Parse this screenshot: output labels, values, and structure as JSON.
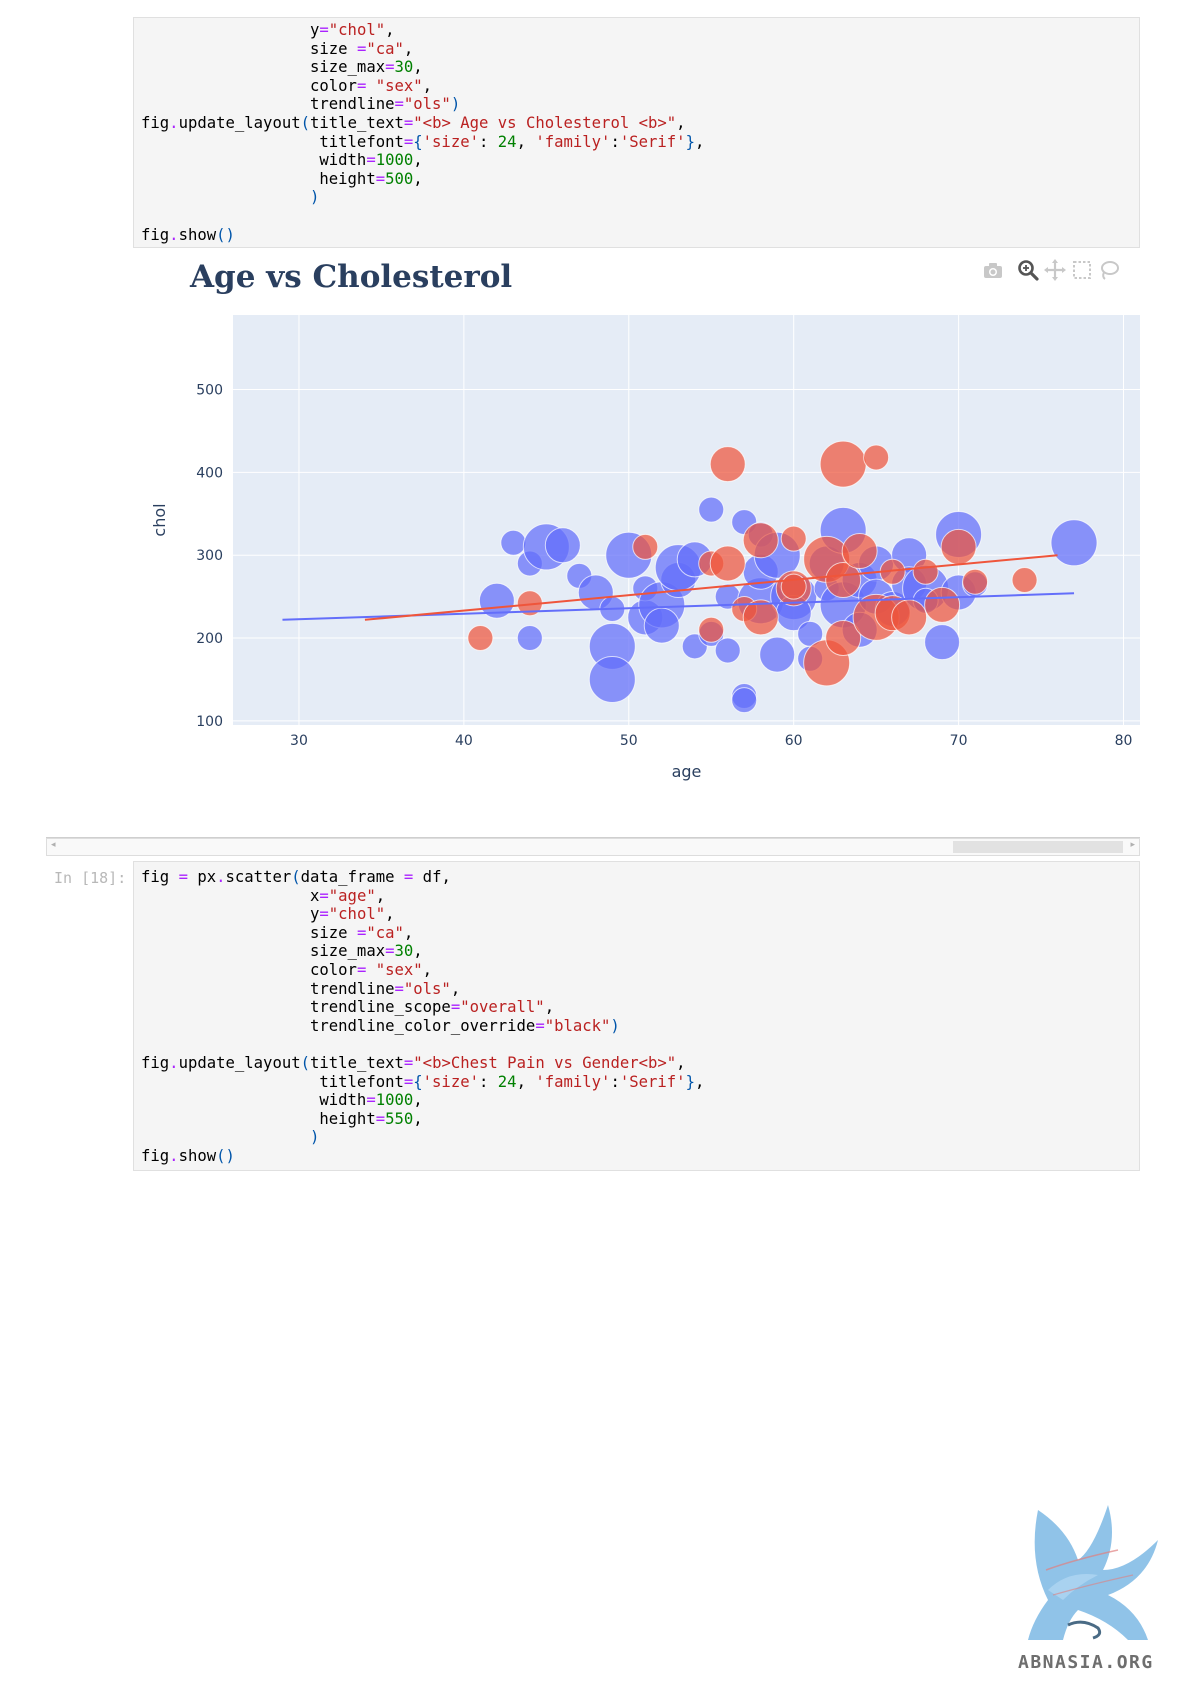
{
  "cell_top": {
    "lines": [
      [
        {
          "t": "                  y"
        },
        {
          "t": "=",
          "c": "o"
        },
        {
          "t": "\"chol\"",
          "c": "s"
        },
        {
          "t": ","
        }
      ],
      [
        {
          "t": "                  size "
        },
        {
          "t": "=",
          "c": "o"
        },
        {
          "t": "\"ca\"",
          "c": "s"
        },
        {
          "t": ","
        }
      ],
      [
        {
          "t": "                  size_max"
        },
        {
          "t": "=",
          "c": "o"
        },
        {
          "t": "30",
          "c": "n"
        },
        {
          "t": ","
        }
      ],
      [
        {
          "t": "                  color"
        },
        {
          "t": "=",
          "c": "o"
        },
        {
          "t": " "
        },
        {
          "t": "\"sex\"",
          "c": "s"
        },
        {
          "t": ","
        }
      ],
      [
        {
          "t": "                  trendline"
        },
        {
          "t": "=",
          "c": "o"
        },
        {
          "t": "\"ols\"",
          "c": "s"
        },
        {
          "t": ")",
          "c": "p"
        }
      ],
      [
        {
          "t": "fig"
        },
        {
          "t": ".",
          "c": "o"
        },
        {
          "t": "update_layout"
        },
        {
          "t": "(",
          "c": "p"
        },
        {
          "t": "title_text"
        },
        {
          "t": "=",
          "c": "o"
        },
        {
          "t": "\"<b> Age vs Cholesterol <b>\"",
          "c": "s"
        },
        {
          "t": ","
        }
      ],
      [
        {
          "t": "                   titlefont"
        },
        {
          "t": "=",
          "c": "o"
        },
        {
          "t": "{",
          "c": "p"
        },
        {
          "t": "'size'",
          "c": "s"
        },
        {
          "t": ": "
        },
        {
          "t": "24",
          "c": "n"
        },
        {
          "t": ", "
        },
        {
          "t": "'family'",
          "c": "s"
        },
        {
          "t": ":"
        },
        {
          "t": "'Serif'",
          "c": "s"
        },
        {
          "t": "}",
          "c": "p"
        },
        {
          "t": ","
        }
      ],
      [
        {
          "t": "                   width"
        },
        {
          "t": "=",
          "c": "o"
        },
        {
          "t": "1000",
          "c": "n"
        },
        {
          "t": ","
        }
      ],
      [
        {
          "t": "                   height"
        },
        {
          "t": "=",
          "c": "o"
        },
        {
          "t": "500",
          "c": "n"
        },
        {
          "t": ","
        }
      ],
      [
        {
          "t": "                  "
        },
        {
          "t": ")",
          "c": "p"
        }
      ],
      [
        {
          "t": ""
        }
      ],
      [
        {
          "t": "fig"
        },
        {
          "t": ".",
          "c": "o"
        },
        {
          "t": "show"
        },
        {
          "t": "()",
          "c": "p"
        }
      ]
    ]
  },
  "cell_bottom": {
    "prompt": "In [18]:",
    "lines": [
      [
        {
          "t": "fig "
        },
        {
          "t": "=",
          "c": "o"
        },
        {
          "t": " px"
        },
        {
          "t": ".",
          "c": "o"
        },
        {
          "t": "scatter"
        },
        {
          "t": "(",
          "c": "p"
        },
        {
          "t": "data_frame "
        },
        {
          "t": "=",
          "c": "o"
        },
        {
          "t": " df,"
        }
      ],
      [
        {
          "t": "                  x"
        },
        {
          "t": "=",
          "c": "o"
        },
        {
          "t": "\"age\"",
          "c": "s"
        },
        {
          "t": ","
        }
      ],
      [
        {
          "t": "                  y"
        },
        {
          "t": "=",
          "c": "o"
        },
        {
          "t": "\"chol\"",
          "c": "s"
        },
        {
          "t": ","
        }
      ],
      [
        {
          "t": "                  size "
        },
        {
          "t": "=",
          "c": "o"
        },
        {
          "t": "\"ca\"",
          "c": "s"
        },
        {
          "t": ","
        }
      ],
      [
        {
          "t": "                  size_max"
        },
        {
          "t": "=",
          "c": "o"
        },
        {
          "t": "30",
          "c": "n"
        },
        {
          "t": ","
        }
      ],
      [
        {
          "t": "                  color"
        },
        {
          "t": "=",
          "c": "o"
        },
        {
          "t": " "
        },
        {
          "t": "\"sex\"",
          "c": "s"
        },
        {
          "t": ","
        }
      ],
      [
        {
          "t": "                  trendline"
        },
        {
          "t": "=",
          "c": "o"
        },
        {
          "t": "\"ols\"",
          "c": "s"
        },
        {
          "t": ","
        }
      ],
      [
        {
          "t": "                  trendline_scope"
        },
        {
          "t": "=",
          "c": "o"
        },
        {
          "t": "\"overall\"",
          "c": "s"
        },
        {
          "t": ","
        }
      ],
      [
        {
          "t": "                  trendline_color_override"
        },
        {
          "t": "=",
          "c": "o"
        },
        {
          "t": "\"black\"",
          "c": "s"
        },
        {
          "t": ")",
          "c": "p"
        }
      ],
      [
        {
          "t": ""
        }
      ],
      [
        {
          "t": "fig"
        },
        {
          "t": ".",
          "c": "o"
        },
        {
          "t": "update_layout"
        },
        {
          "t": "(",
          "c": "p"
        },
        {
          "t": "title_text"
        },
        {
          "t": "=",
          "c": "o"
        },
        {
          "t": "\"<b>Chest Pain vs Gender<b>\"",
          "c": "s"
        },
        {
          "t": ","
        }
      ],
      [
        {
          "t": "                   titlefont"
        },
        {
          "t": "=",
          "c": "o"
        },
        {
          "t": "{",
          "c": "p"
        },
        {
          "t": "'size'",
          "c": "s"
        },
        {
          "t": ": "
        },
        {
          "t": "24",
          "c": "n"
        },
        {
          "t": ", "
        },
        {
          "t": "'family'",
          "c": "s"
        },
        {
          "t": ":"
        },
        {
          "t": "'Serif'",
          "c": "s"
        },
        {
          "t": "}",
          "c": "p"
        },
        {
          "t": ","
        }
      ],
      [
        {
          "t": "                   width"
        },
        {
          "t": "=",
          "c": "o"
        },
        {
          "t": "1000",
          "c": "n"
        },
        {
          "t": ","
        }
      ],
      [
        {
          "t": "                   height"
        },
        {
          "t": "=",
          "c": "o"
        },
        {
          "t": "550",
          "c": "n"
        },
        {
          "t": ","
        }
      ],
      [
        {
          "t": "                  "
        },
        {
          "t": ")",
          "c": "p"
        }
      ],
      [
        {
          "t": "fig"
        },
        {
          "t": ".",
          "c": "o"
        },
        {
          "t": "show"
        },
        {
          "t": "()",
          "c": "p"
        }
      ]
    ]
  },
  "plot": {
    "title": "Age vs Cholesterol",
    "toolbar": [
      "camera-icon",
      "zoom-icon",
      "pan-icon",
      "box-select-icon",
      "lasso-select-icon"
    ]
  },
  "chart_data": {
    "type": "scatter",
    "title": "Age vs Cholesterol",
    "xlabel": "age",
    "ylabel": "chol",
    "xlim": [
      26,
      81
    ],
    "ylim": [
      95,
      590
    ],
    "xticks": [
      30,
      40,
      50,
      60,
      70,
      80
    ],
    "yticks": [
      100,
      200,
      300,
      400,
      500
    ],
    "grid": true,
    "colors": {
      "blue": "#636efa",
      "red": "#ef553b",
      "plot_bg": "#e5ecf6",
      "axis_text": "#2a3f5f"
    },
    "series": [
      {
        "color": "blue",
        "points": [
          [
            42,
            245,
            2
          ],
          [
            44,
            290,
            1
          ],
          [
            43,
            315,
            1
          ],
          [
            45,
            310,
            3
          ],
          [
            46,
            312,
            2
          ],
          [
            47,
            275,
            1
          ],
          [
            48,
            255,
            2
          ],
          [
            49,
            190,
            3
          ],
          [
            49,
            150,
            3
          ],
          [
            50,
            300,
            3
          ],
          [
            51,
            225,
            2
          ],
          [
            51,
            260,
            1
          ],
          [
            52,
            240,
            3
          ],
          [
            52,
            215,
            2
          ],
          [
            53,
            270,
            2
          ],
          [
            53,
            285,
            3
          ],
          [
            54,
            295,
            2
          ],
          [
            54,
            190,
            1
          ],
          [
            55,
            355,
            1
          ],
          [
            55,
            205,
            1
          ],
          [
            56,
            250,
            1
          ],
          [
            56,
            185,
            1
          ],
          [
            57,
            130,
            1
          ],
          [
            57,
            340,
            1
          ],
          [
            58,
            325,
            1
          ],
          [
            58,
            245,
            3
          ],
          [
            58,
            280,
            2
          ],
          [
            59,
            300,
            3
          ],
          [
            59,
            180,
            2
          ],
          [
            60,
            250,
            3
          ],
          [
            60,
            230,
            2
          ],
          [
            61,
            205,
            1
          ],
          [
            61,
            175,
            1
          ],
          [
            62,
            290,
            2
          ],
          [
            62,
            260,
            1
          ],
          [
            63,
            330,
            3
          ],
          [
            63,
            240,
            3
          ],
          [
            64,
            270,
            2
          ],
          [
            64,
            210,
            2
          ],
          [
            65,
            290,
            2
          ],
          [
            65,
            250,
            2
          ],
          [
            66,
            235,
            2
          ],
          [
            67,
            300,
            2
          ],
          [
            67,
            265,
            2
          ],
          [
            68,
            260,
            3
          ],
          [
            68,
            245,
            1
          ],
          [
            69,
            195,
            2
          ],
          [
            70,
            325,
            3
          ],
          [
            70,
            255,
            2
          ],
          [
            71,
            265,
            1
          ],
          [
            77,
            315,
            3
          ],
          [
            44,
            200,
            1
          ],
          [
            49,
            235,
            1
          ],
          [
            57,
            125,
            1
          ]
        ],
        "trend": [
          [
            29,
            222
          ],
          [
            77,
            254
          ]
        ]
      },
      {
        "color": "red",
        "points": [
          [
            41,
            200,
            1
          ],
          [
            44,
            242,
            1
          ],
          [
            51,
            310,
            1
          ],
          [
            55,
            210,
            1
          ],
          [
            55,
            290,
            1
          ],
          [
            56,
            410,
            2
          ],
          [
            56,
            290,
            2
          ],
          [
            57,
            235,
            1
          ],
          [
            58,
            225,
            2
          ],
          [
            58,
            318,
            2
          ],
          [
            60,
            320,
            1
          ],
          [
            60,
            260,
            2
          ],
          [
            62,
            295,
            3
          ],
          [
            62,
            170,
            3
          ],
          [
            63,
            410,
            3
          ],
          [
            63,
            200,
            2
          ],
          [
            63,
            270,
            2
          ],
          [
            64,
            305,
            2
          ],
          [
            65,
            418,
            1
          ],
          [
            65,
            225,
            3
          ],
          [
            66,
            230,
            2
          ],
          [
            66,
            280,
            1
          ],
          [
            67,
            225,
            2
          ],
          [
            68,
            280,
            1
          ],
          [
            69,
            240,
            2
          ],
          [
            70,
            310,
            2
          ],
          [
            71,
            268,
            1
          ],
          [
            74,
            270,
            1
          ],
          [
            60,
            262,
            1
          ]
        ],
        "trend": [
          [
            34,
            222
          ],
          [
            76,
            300
          ]
        ]
      }
    ]
  },
  "watermark": {
    "text": "ABNASIA.ORG"
  }
}
